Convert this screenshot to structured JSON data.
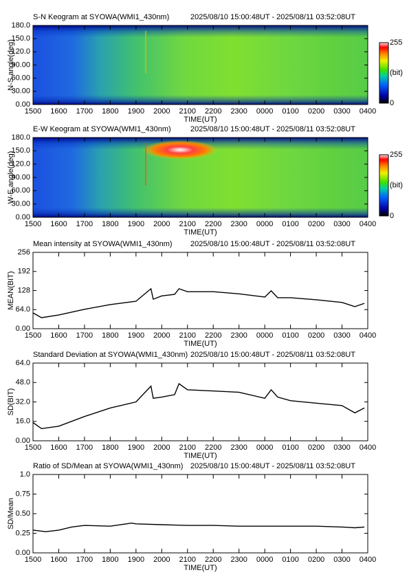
{
  "chart_data": [
    {
      "type": "keogram",
      "title": "S-N Keogram at SYOWA(WMI1_430nm)",
      "subtitle": "2025/08/10 15:00:48UT - 2025/08/11 03:52:08UT",
      "xlabel": "TIME(UT)",
      "ylabel": "N-S angle(deg)",
      "xlim": [
        15,
        28
      ],
      "xticks": [
        {
          "value": 15,
          "label": "1500"
        },
        {
          "value": 16,
          "label": "1600"
        },
        {
          "value": 17,
          "label": "1700"
        },
        {
          "value": 18,
          "label": "1800"
        },
        {
          "value": 19,
          "label": "1900"
        },
        {
          "value": 20,
          "label": "2000"
        },
        {
          "value": 21,
          "label": "2100"
        },
        {
          "value": 22,
          "label": "2200"
        },
        {
          "value": 23,
          "label": "2300"
        },
        {
          "value": 24,
          "label": "0000"
        },
        {
          "value": 25,
          "label": "0100"
        },
        {
          "value": 26,
          "label": "0200"
        },
        {
          "value": 27,
          "label": "0300"
        },
        {
          "value": 28,
          "label": "0400"
        }
      ],
      "ylim": [
        0,
        180
      ],
      "yticks": [
        {
          "value": 0,
          "label": "0.00"
        },
        {
          "value": 30,
          "label": "30.00"
        },
        {
          "value": 60,
          "label": "60.00"
        },
        {
          "value": 90,
          "label": "90.00"
        },
        {
          "value": 120,
          "label": "120.0"
        },
        {
          "value": 150,
          "label": "150.0"
        },
        {
          "value": 180,
          "label": "180.0"
        }
      ],
      "colorbar_ticks": [
        255,
        0
      ],
      "colorbar_label": "(bit)"
    },
    {
      "type": "keogram",
      "title": "E-W Keogram at SYOWA(WMI1_430nm)",
      "subtitle": "2025/08/10 15:00:48UT - 2025/08/11 03:52:08UT",
      "xlabel": "TIME(UT)",
      "ylabel": "W-E angle(deg)",
      "xlim": [
        15,
        28
      ],
      "xticks": [
        {
          "value": 15,
          "label": "1500"
        },
        {
          "value": 16,
          "label": "1600"
        },
        {
          "value": 17,
          "label": "1700"
        },
        {
          "value": 18,
          "label": "1800"
        },
        {
          "value": 19,
          "label": "1900"
        },
        {
          "value": 20,
          "label": "2000"
        },
        {
          "value": 21,
          "label": "2100"
        },
        {
          "value": 22,
          "label": "2200"
        },
        {
          "value": 23,
          "label": "2300"
        },
        {
          "value": 24,
          "label": "0000"
        },
        {
          "value": 25,
          "label": "0100"
        },
        {
          "value": 26,
          "label": "0200"
        },
        {
          "value": 27,
          "label": "0300"
        },
        {
          "value": 28,
          "label": "0400"
        }
      ],
      "ylim": [
        0,
        180
      ],
      "yticks": [
        {
          "value": 0,
          "label": "0.00"
        },
        {
          "value": 30,
          "label": "30.00"
        },
        {
          "value": 60,
          "label": "60.00"
        },
        {
          "value": 90,
          "label": "90.00"
        },
        {
          "value": 120,
          "label": "120.0"
        },
        {
          "value": 150,
          "label": "150.0"
        },
        {
          "value": 180,
          "label": "180.0"
        }
      ],
      "colorbar_ticks": [
        255,
        0
      ],
      "colorbar_label": "(bit)"
    },
    {
      "type": "line",
      "title": "Mean intensity at SYOWA(WMI1_430nm)",
      "subtitle": "2025/08/10 15:00:48UT - 2025/08/11 03:52:08UT",
      "xlabel": "TIME(UT)",
      "ylabel": "MEAN(BIT)",
      "xlim": [
        15,
        28
      ],
      "xticks": [
        {
          "value": 15,
          "label": "1500"
        },
        {
          "value": 16,
          "label": "1600"
        },
        {
          "value": 17,
          "label": "1700"
        },
        {
          "value": 18,
          "label": "1800"
        },
        {
          "value": 19,
          "label": "1900"
        },
        {
          "value": 20,
          "label": "2000"
        },
        {
          "value": 21,
          "label": "2100"
        },
        {
          "value": 22,
          "label": "2200"
        },
        {
          "value": 23,
          "label": "2300"
        },
        {
          "value": 24,
          "label": "0000"
        },
        {
          "value": 25,
          "label": "0100"
        },
        {
          "value": 26,
          "label": "0200"
        },
        {
          "value": 27,
          "label": "0300"
        },
        {
          "value": 28,
          "label": "0400"
        }
      ],
      "ylim": [
        0,
        256
      ],
      "yticks": [
        {
          "value": 0,
          "label": "0.00"
        },
        {
          "value": 64,
          "label": "64.0"
        },
        128,
        192,
        256
      ],
      "color": "#000000",
      "x": [
        15,
        15.33,
        16,
        17,
        18,
        19,
        19.58,
        19.67,
        20,
        20.5,
        20.67,
        21,
        22,
        23,
        24,
        24.25,
        24.5,
        25,
        26,
        27,
        27.5,
        27.87
      ],
      "values": [
        53,
        37,
        46,
        65,
        81,
        92,
        134,
        99,
        110,
        115,
        134,
        124,
        124,
        117,
        106,
        127,
        104,
        104,
        97,
        88,
        74,
        85
      ]
    },
    {
      "type": "line",
      "title": "Standard Deviation at SYOWA(WMI1_430nm)",
      "subtitle": "2025/08/10 15:00:48UT - 2025/08/11 03:52:08UT",
      "xlabel": "TIME(UT)",
      "ylabel": "SD(BIT)",
      "xlim": [
        15,
        28
      ],
      "xticks": [
        {
          "value": 15,
          "label": "1500"
        },
        {
          "value": 16,
          "label": "1600"
        },
        {
          "value": 17,
          "label": "1700"
        },
        {
          "value": 18,
          "label": "1800"
        },
        {
          "value": 19,
          "label": "1900"
        },
        {
          "value": 20,
          "label": "2000"
        },
        {
          "value": 21,
          "label": "2100"
        },
        {
          "value": 22,
          "label": "2200"
        },
        {
          "value": 23,
          "label": "2300"
        },
        {
          "value": 24,
          "label": "0000"
        },
        {
          "value": 25,
          "label": "0100"
        },
        {
          "value": 26,
          "label": "0200"
        },
        {
          "value": 27,
          "label": "0300"
        },
        {
          "value": 28,
          "label": "0400"
        }
      ],
      "ylim": [
        0,
        64
      ],
      "yticks": [
        {
          "value": 0,
          "label": "0.00"
        },
        {
          "value": 16,
          "label": "16.0"
        },
        {
          "value": 32,
          "label": "32.0"
        },
        {
          "value": 48,
          "label": "48.0"
        },
        {
          "value": 64,
          "label": "64.0"
        }
      ],
      "color": "#000000",
      "x": [
        15,
        15.33,
        16,
        17,
        18,
        19,
        19.58,
        19.67,
        20,
        20.5,
        20.67,
        21,
        22,
        23,
        24,
        24.25,
        24.5,
        25,
        26,
        27,
        27.5,
        27.87
      ],
      "values": [
        15,
        10,
        12,
        20,
        27,
        32,
        45,
        35,
        36,
        38,
        47,
        42,
        41,
        40,
        35,
        42,
        36,
        33,
        31,
        29,
        23,
        27
      ]
    },
    {
      "type": "line",
      "title": "Ratio of SD/Mean at SYOWA(WMI1_430nm)",
      "subtitle": "2025/08/10 15:00:48UT - 2025/08/11 03:52:08UT",
      "xlabel": "TIME(UT)",
      "ylabel": "SD/Mean",
      "xlim": [
        15,
        28
      ],
      "xticks": [
        {
          "value": 15,
          "label": "1500"
        },
        {
          "value": 16,
          "label": "1600"
        },
        {
          "value": 17,
          "label": "1700"
        },
        {
          "value": 18,
          "label": "1800"
        },
        {
          "value": 19,
          "label": "1900"
        },
        {
          "value": 20,
          "label": "2000"
        },
        {
          "value": 21,
          "label": "2100"
        },
        {
          "value": 22,
          "label": "2200"
        },
        {
          "value": 23,
          "label": "2300"
        },
        {
          "value": 24,
          "label": "0000"
        },
        {
          "value": 25,
          "label": "0100"
        },
        {
          "value": 26,
          "label": "0200"
        },
        {
          "value": 27,
          "label": "0300"
        },
        {
          "value": 28,
          "label": "0400"
        }
      ],
      "ylim": [
        0,
        1
      ],
      "yticks": [
        {
          "value": 0,
          "label": "0.00"
        },
        0.25,
        {
          "value": 0.5,
          "label": "0.50"
        },
        0.75,
        {
          "value": 1,
          "label": "1.0"
        }
      ],
      "color": "#000000",
      "x": [
        15,
        15.5,
        16,
        16.5,
        17,
        18,
        18.83,
        19,
        20,
        21,
        22,
        23,
        24,
        25,
        26,
        27,
        27.5,
        27.87
      ],
      "values": [
        0.29,
        0.27,
        0.29,
        0.33,
        0.35,
        0.34,
        0.38,
        0.37,
        0.36,
        0.35,
        0.35,
        0.34,
        0.34,
        0.34,
        0.34,
        0.33,
        0.32,
        0.33
      ]
    }
  ]
}
